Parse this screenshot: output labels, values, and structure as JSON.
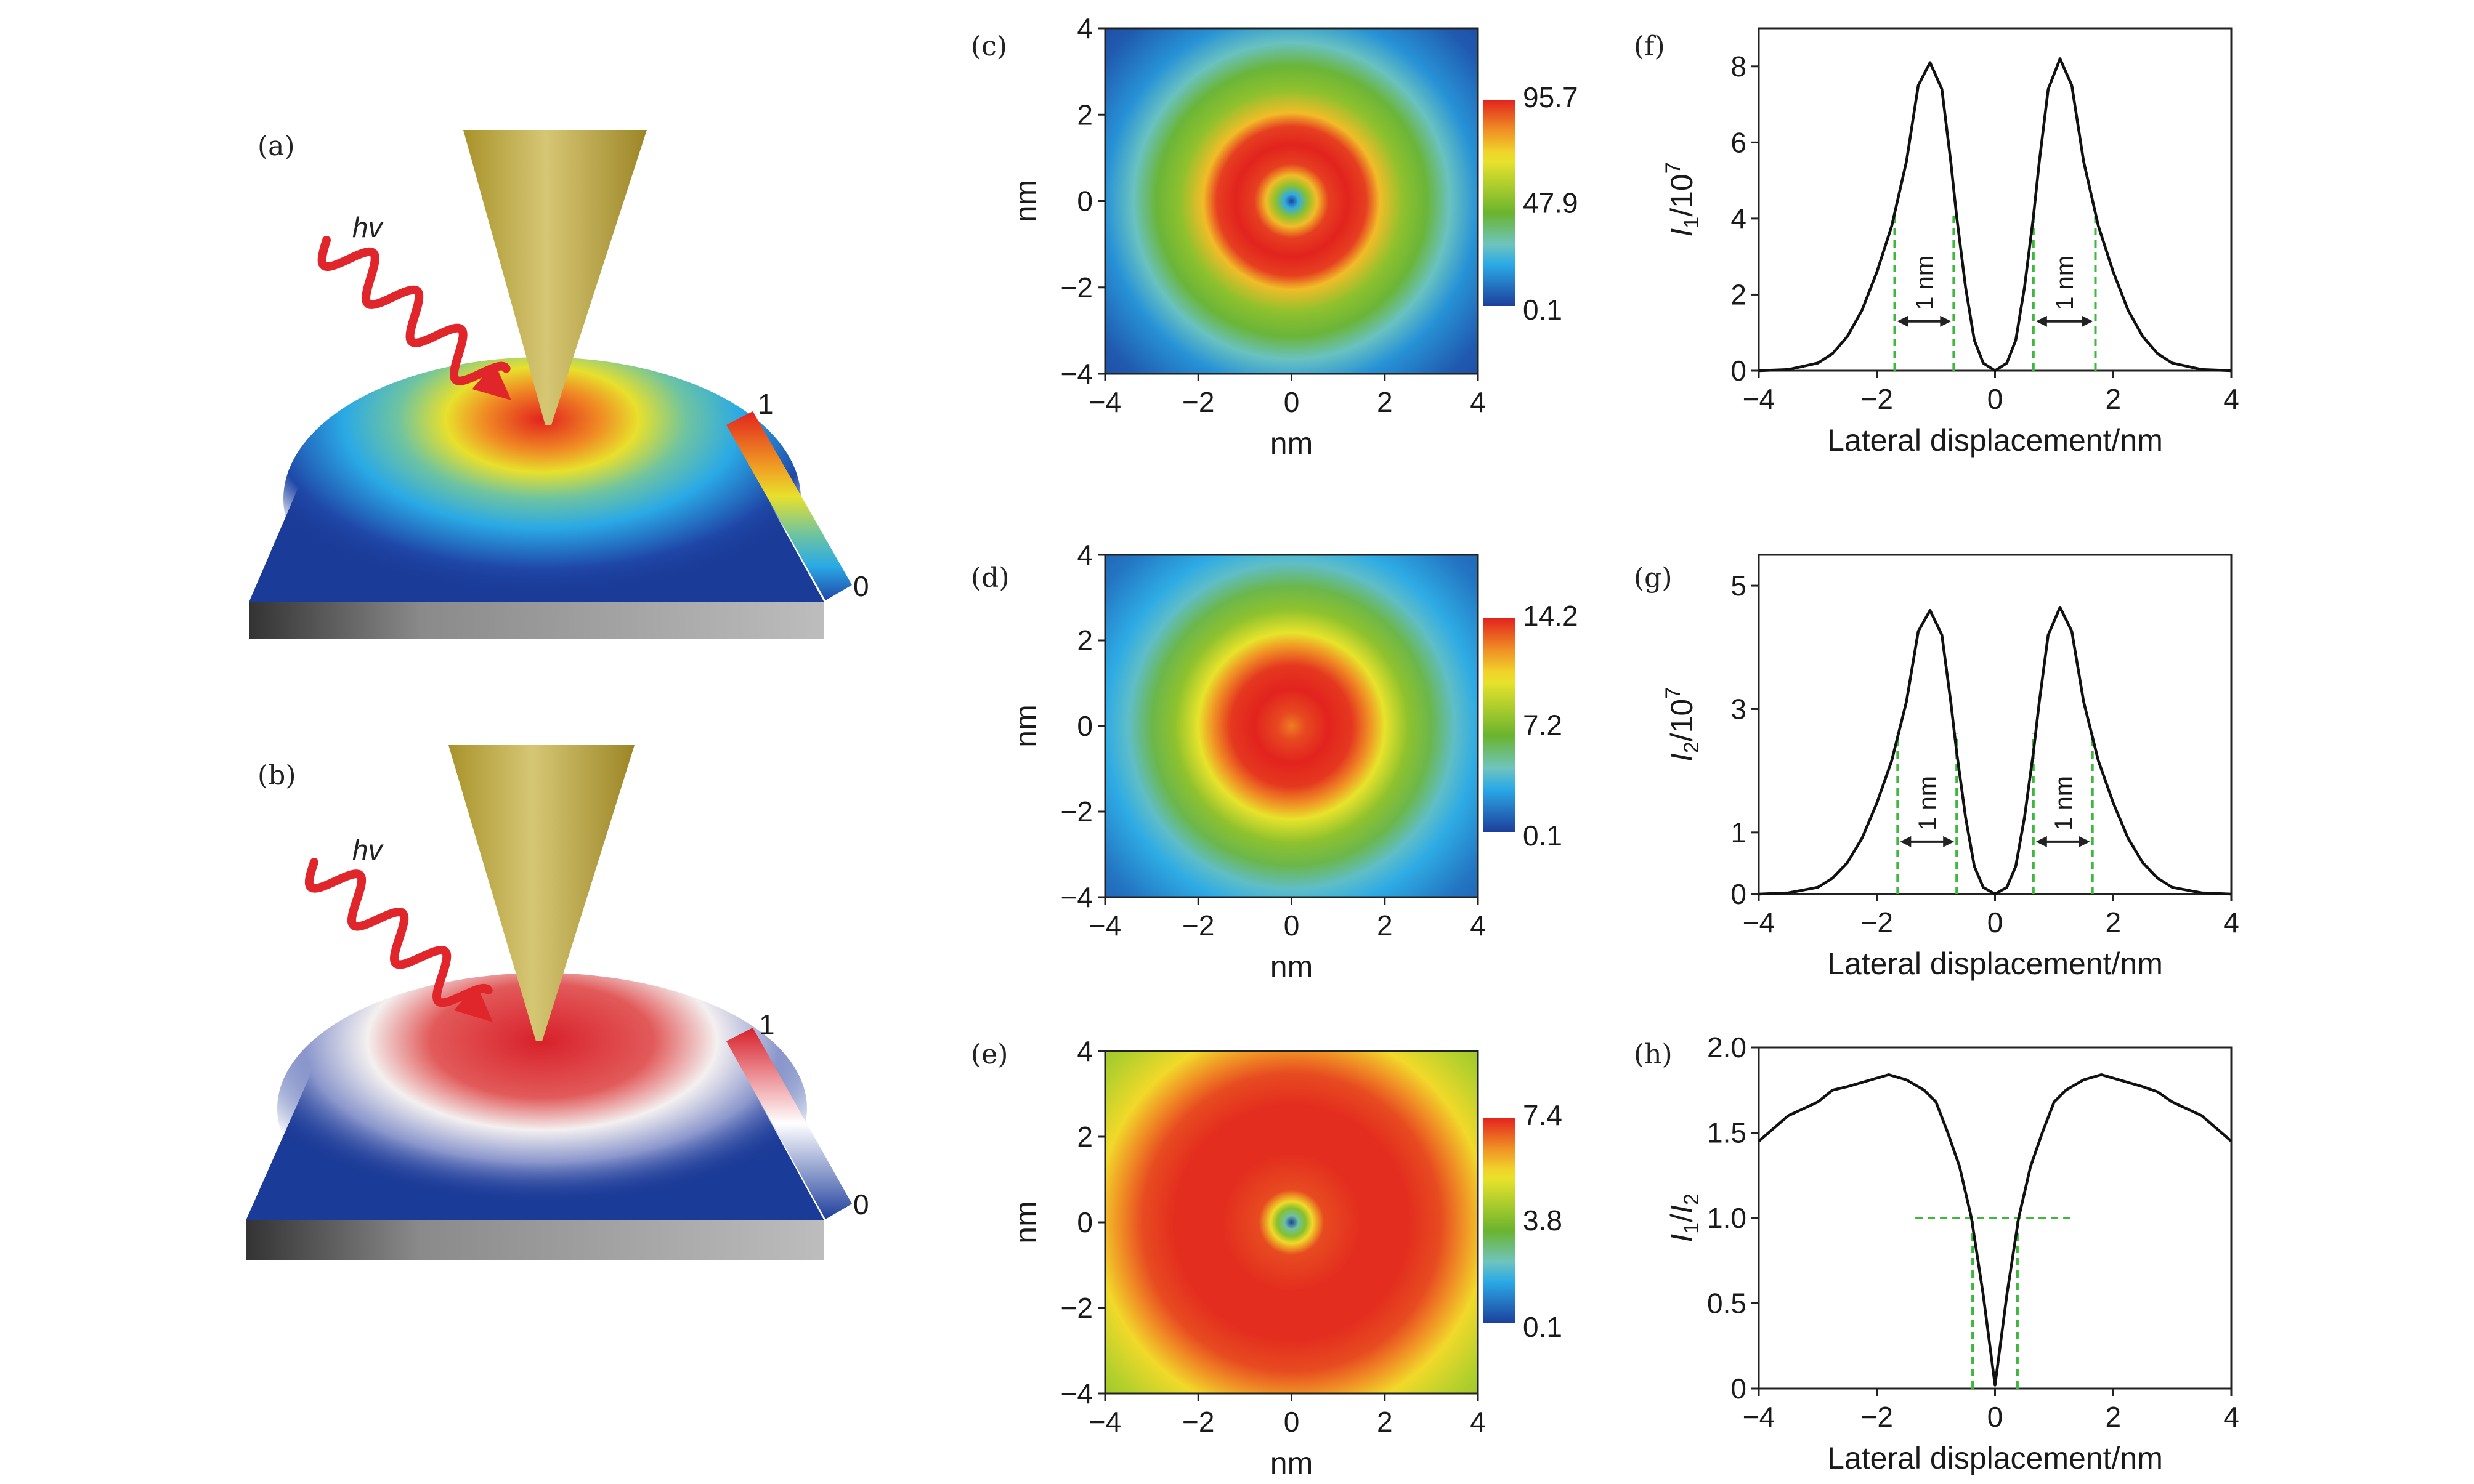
{
  "illustrations": [
    {
      "label": "(a)",
      "photon_label": "hv",
      "colorbar_max": "1",
      "colorbar_min": "0",
      "field_colormap": "jet"
    },
    {
      "label": "(b)",
      "photon_label": "hv",
      "colorbar_max": "1",
      "colorbar_min": "0",
      "field_colormap": "blue-white-red"
    }
  ],
  "colors": {
    "curve": "#111111",
    "guide": "#3cb93c",
    "photon": "#e0262a",
    "tip": "#c2ae48",
    "colormap": [
      "#1d3f9c",
      "#2aa9e6",
      "#6fc4bd",
      "#6ab42e",
      "#f1e62b",
      "#f08a24",
      "#e2231e"
    ]
  },
  "chart_data": [
    {
      "panel": "(c)",
      "type": "heatmap",
      "xlabel": "nm",
      "ylabel": "nm",
      "xlim": [
        -4,
        4
      ],
      "ylim": [
        -4,
        4
      ],
      "xticks": [
        "−4",
        "−2",
        "0",
        "2",
        "4"
      ],
      "yticks": [
        "4",
        "2",
        "0",
        "−2",
        "−4"
      ],
      "colorbar": {
        "range": [
          0.1,
          95.7
        ],
        "ticks": [
          "95.7",
          "47.9",
          "0.1"
        ]
      },
      "radial_profile": {
        "r": [
          0,
          0.15,
          0.35,
          0.55,
          0.8,
          1.2,
          1.6,
          1.9,
          2.4,
          2.9,
          3.4,
          4.0,
          5.0,
          5.7
        ],
        "value": [
          0.1,
          20,
          50,
          75,
          92,
          95.7,
          92,
          75,
          50,
          42,
          28,
          15,
          5,
          2
        ]
      }
    },
    {
      "panel": "(d)",
      "type": "heatmap",
      "xlabel": "nm",
      "ylabel": "nm",
      "xlim": [
        -4,
        4
      ],
      "ylim": [
        -4,
        4
      ],
      "xticks": [
        "−4",
        "−2",
        "0",
        "2",
        "4"
      ],
      "yticks": [
        "4",
        "2",
        "0",
        "−2",
        "−4"
      ],
      "colorbar": {
        "range": [
          0.1,
          14.2
        ],
        "ticks": [
          "14.2",
          "7.2",
          "0.1"
        ]
      },
      "radial_profile": {
        "r": [
          0,
          0.3,
          0.8,
          1.3,
          1.7,
          2.0,
          2.5,
          3.0,
          3.5,
          4.0,
          5.0,
          5.7
        ],
        "value": [
          12.5,
          13.5,
          14.2,
          13.8,
          12,
          10,
          7.5,
          6,
          4,
          3,
          1.5,
          1
        ]
      }
    },
    {
      "panel": "(e)",
      "type": "heatmap",
      "xlabel": "nm",
      "ylabel": "nm",
      "xlim": [
        -4,
        4
      ],
      "ylim": [
        -4,
        4
      ],
      "xticks": [
        "−4",
        "−2",
        "0",
        "2",
        "4"
      ],
      "yticks": [
        "4",
        "2",
        "0",
        "−2",
        "−4"
      ],
      "colorbar": {
        "range": [
          0.1,
          7.4
        ],
        "ticks": [
          "7.4",
          "3.8",
          "0.1"
        ]
      },
      "radial_profile": {
        "r": [
          0,
          0.15,
          0.3,
          0.45,
          0.7,
          1.5,
          2.5,
          3.2,
          3.7,
          4.2,
          5.0,
          5.7
        ],
        "value": [
          0.1,
          2.5,
          3.8,
          5.5,
          7.0,
          7.3,
          7.3,
          7.0,
          6.3,
          5.5,
          4.5,
          4.0
        ]
      }
    },
    {
      "panel": "(f)",
      "type": "line",
      "xlabel": "Lateral displacement/nm",
      "ylabel": {
        "symbol": "I",
        "sub": "1",
        "rest": "/10",
        "sup": "7"
      },
      "xlim": [
        -4,
        4
      ],
      "ylim": [
        0,
        9
      ],
      "xticks": [
        -4,
        -2,
        0,
        2,
        4
      ],
      "xtick_labels": [
        "−4",
        "−2",
        "0",
        "2",
        "4"
      ],
      "yticks": [
        0,
        2,
        4,
        6,
        8
      ],
      "ytick_labels": [
        "0",
        "2",
        "4",
        "6",
        "8"
      ],
      "x": [
        -4,
        -3.5,
        -3,
        -2.75,
        -2.5,
        -2.25,
        -2,
        -1.75,
        -1.5,
        -1.3,
        -1.1,
        -0.9,
        -0.75,
        -0.65,
        -0.5,
        -0.35,
        -0.2,
        0,
        0.2,
        0.35,
        0.5,
        0.65,
        0.75,
        0.9,
        1.1,
        1.3,
        1.5,
        1.75,
        2,
        2.25,
        2.5,
        2.75,
        3,
        3.5,
        4
      ],
      "y": [
        0,
        0.03,
        0.2,
        0.45,
        0.9,
        1.6,
        2.6,
        3.8,
        5.5,
        7.5,
        8.1,
        7.4,
        5.5,
        4.05,
        2.2,
        0.8,
        0.2,
        0,
        0.2,
        0.8,
        2.2,
        4.05,
        5.5,
        7.4,
        8.2,
        7.5,
        5.5,
        3.8,
        2.6,
        1.6,
        0.9,
        0.45,
        0.2,
        0.03,
        0
      ],
      "guides": {
        "vertical_x": [
          -1.7,
          -0.7,
          0.65,
          1.7
        ],
        "vertical_top": 4.2,
        "arrows": [
          {
            "from": -1.7,
            "to": -0.7,
            "y": 1.3,
            "label": "1 nm"
          },
          {
            "from": 0.65,
            "to": 1.7,
            "y": 1.3,
            "label": "1 nm"
          }
        ]
      }
    },
    {
      "panel": "(g)",
      "type": "line",
      "xlabel": "Lateral displacement/nm",
      "ylabel": {
        "symbol": "I",
        "sub": "2",
        "rest": "/10",
        "sup": "7"
      },
      "xlim": [
        -4,
        4
      ],
      "ylim": [
        0,
        5.5
      ],
      "xticks": [
        -4,
        -2,
        0,
        2,
        4
      ],
      "xtick_labels": [
        "−4",
        "−2",
        "0",
        "2",
        "4"
      ],
      "yticks": [
        0,
        1,
        3,
        5
      ],
      "ytick_labels": [
        "0",
        "1",
        "3",
        "5"
      ],
      "x": [
        -4,
        -3.5,
        -3,
        -2.75,
        -2.5,
        -2.25,
        -2,
        -1.75,
        -1.5,
        -1.3,
        -1.1,
        -0.9,
        -0.75,
        -0.65,
        -0.5,
        -0.35,
        -0.2,
        0,
        0.2,
        0.35,
        0.5,
        0.65,
        0.75,
        0.9,
        1.1,
        1.3,
        1.5,
        1.75,
        2,
        2.25,
        2.5,
        2.75,
        3,
        3.5,
        4
      ],
      "y": [
        0,
        0.02,
        0.11,
        0.26,
        0.51,
        0.91,
        1.48,
        2.16,
        3.12,
        4.26,
        4.6,
        4.2,
        3.12,
        2.3,
        1.25,
        0.45,
        0.11,
        0,
        0.11,
        0.45,
        1.25,
        2.3,
        3.12,
        4.2,
        4.65,
        4.26,
        3.12,
        2.16,
        1.48,
        0.91,
        0.51,
        0.26,
        0.11,
        0.02,
        0
      ],
      "guides": {
        "vertical_x": [
          -1.65,
          -0.65,
          0.65,
          1.65
        ],
        "vertical_top": 2.6,
        "arrows": [
          {
            "from": -1.65,
            "to": -0.65,
            "y": 0.85,
            "label": "1 nm"
          },
          {
            "from": 0.65,
            "to": 1.65,
            "y": 0.85,
            "label": "1 nm"
          }
        ]
      }
    },
    {
      "panel": "(h)",
      "type": "line",
      "xlabel": "Lateral displacement/nm",
      "ylabel": {
        "symbol": "I",
        "sub": "1",
        "rest": "/",
        "symbol2": "I",
        "sub2": "2"
      },
      "xlim": [
        -4,
        4
      ],
      "ylim": [
        0,
        2.0
      ],
      "xticks": [
        -4,
        -2,
        0,
        2,
        4
      ],
      "xtick_labels": [
        "−4",
        "−2",
        "0",
        "2",
        "4"
      ],
      "yticks": [
        0,
        0.5,
        1.0,
        1.5,
        2.0
      ],
      "ytick_labels": [
        "0",
        "0.5",
        "1.0",
        "1.5",
        "2.0"
      ],
      "x": [
        -4,
        -3.5,
        -3,
        -2.75,
        -2.5,
        -2.2,
        -1.8,
        -1.5,
        -1.2,
        -1,
        -0.8,
        -0.6,
        -0.4,
        -0.2,
        0,
        0.2,
        0.4,
        0.6,
        0.8,
        1,
        1.2,
        1.5,
        1.8,
        2.2,
        2.5,
        2.75,
        3,
        3.5,
        4
      ],
      "y": [
        1.45,
        1.6,
        1.68,
        1.75,
        1.77,
        1.8,
        1.84,
        1.81,
        1.75,
        1.68,
        1.5,
        1.3,
        1.0,
        0.55,
        0.02,
        0.55,
        1.0,
        1.3,
        1.5,
        1.68,
        1.75,
        1.81,
        1.84,
        1.8,
        1.77,
        1.74,
        1.68,
        1.6,
        1.45
      ],
      "guides": {
        "horizontal_y": 1.0,
        "horizontal_x": [
          -1.35,
          1.35
        ],
        "vertical_x": [
          -0.38,
          0.38
        ]
      }
    }
  ]
}
